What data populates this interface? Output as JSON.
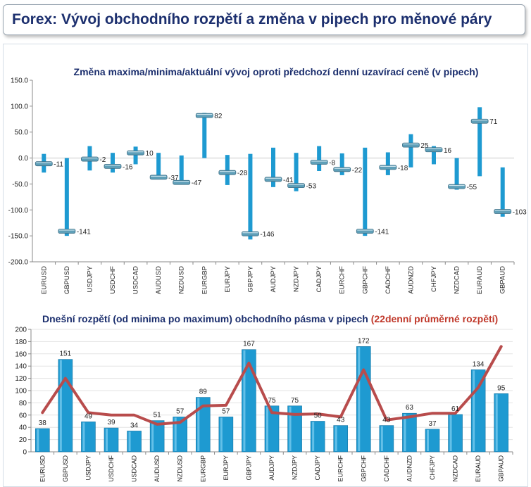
{
  "header": {
    "title": "Forex: Vývoj obchodního rozpětí a změna v pipech pro měnové páry"
  },
  "chart_data": [
    {
      "type": "bar",
      "title": "Změna maxima/minima/aktuální vývoj oproti předchozí denní uzavírací ceně (v pipech)",
      "categories": [
        "EURUSD",
        "GBPUSD",
        "USDJPY",
        "USDCHF",
        "USDCAD",
        "AUDUSD",
        "NZDUSD",
        "EURGBP",
        "EURJPY",
        "GBPJPY",
        "AUDJPY",
        "NZDJPY",
        "CADJPY",
        "EURCHF",
        "GBPCHF",
        "CADCHF",
        "AUDNZD",
        "CHFJPY",
        "NZDCAD",
        "EURAUD",
        "GBPAUD"
      ],
      "high": [
        8,
        0,
        23,
        10,
        22,
        10,
        5,
        87,
        6,
        8,
        20,
        10,
        23,
        9,
        20,
        11,
        46,
        23,
        0,
        98,
        -18
      ],
      "low": [
        -28,
        -150,
        -24,
        -28,
        -12,
        -40,
        -50,
        0,
        -52,
        -157,
        -56,
        -64,
        -25,
        -33,
        -150,
        -33,
        -18,
        -12,
        -61,
        -35,
        -113
      ],
      "current": [
        -11,
        -141,
        -2,
        -16,
        10,
        -37,
        -47,
        82,
        -28,
        -146,
        -41,
        -53,
        -8,
        -22,
        -141,
        -18,
        25,
        16,
        -55,
        71,
        -103
      ],
      "current_labels": [
        "-11",
        "-141",
        "-2",
        "-16",
        "10",
        "-37",
        "-47",
        "82",
        "-28",
        "-146",
        "-41",
        "-53",
        "-8",
        "-22",
        "-141",
        "-18",
        "25",
        "16",
        "-55",
        "71",
        "-103"
      ],
      "ylim": [
        -200,
        150
      ],
      "yticks": [
        "150.0",
        "100.0",
        "50.0",
        "0.0",
        "-50.0",
        "-100.0",
        "-150.0",
        "-200.0"
      ],
      "colors": {
        "range": "#1e9ad1",
        "marker": "#5f9fb8",
        "title": "#1c2f6e"
      }
    },
    {
      "type": "bar",
      "title": "Dnešní rozpětí (od minima po maximum) obchodního pásma v pipech",
      "title_highlight": "(22denní průměrné rozpětí)",
      "categories": [
        "EURUSD",
        "GBPUSD",
        "USDJPY",
        "USDCHF",
        "USDCAD",
        "AUDUSD",
        "NZDUSD",
        "EURGBP",
        "EURJPY",
        "GBPJPY",
        "AUDJPY",
        "NZDJPY",
        "CADJPY",
        "EURCHF",
        "GBPCHF",
        "CADCHF",
        "AUDNZD",
        "CHFJPY",
        "NZDCAD",
        "EURAUD",
        "GBPAUD"
      ],
      "series": [
        {
          "values": [
            38,
            151,
            49,
            39,
            34,
            51,
            57,
            89,
            57,
            167,
            75,
            75,
            50,
            43,
            172,
            43,
            63,
            37,
            61,
            134,
            95
          ]
        },
        {
          "values": [
            64,
            120,
            64,
            60,
            60,
            45,
            48,
            75,
            76,
            145,
            64,
            61,
            62,
            57,
            134,
            52,
            57,
            63,
            63,
            105,
            172
          ]
        }
      ],
      "value_labels": [
        "38",
        "151",
        "49",
        "39",
        "34",
        "51",
        "57",
        "89",
        "57",
        "167",
        "75",
        "75",
        "50",
        "43",
        "172",
        "43",
        "63",
        "37",
        "61",
        "134",
        "95"
      ],
      "ylim": [
        0,
        200
      ],
      "yticks": [
        "200",
        "180",
        "160",
        "140",
        "120",
        "100",
        "80",
        "60",
        "40",
        "20",
        "0"
      ],
      "colors": {
        "bar": "#1e9ad1",
        "line": "#b84c4c",
        "title": "#1c2f6e",
        "highlight": "#c0392b"
      }
    }
  ]
}
